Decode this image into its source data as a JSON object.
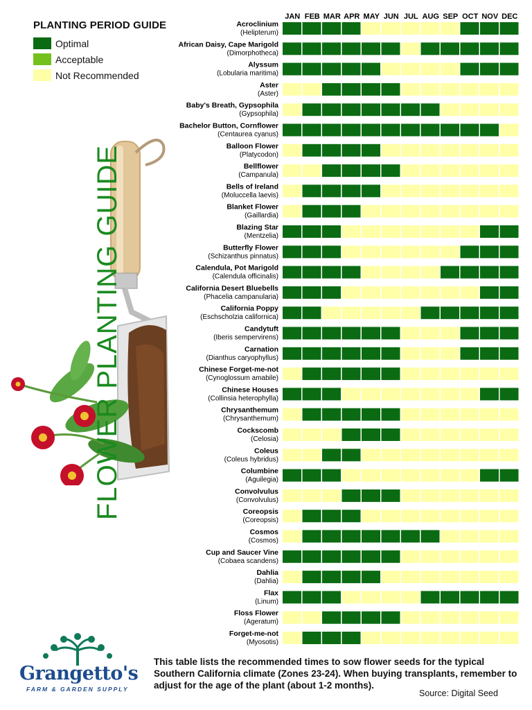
{
  "legend": {
    "title": "PLANTING PERIOD GUIDE",
    "items": [
      {
        "label": "Optimal",
        "color": "#0b6b12"
      },
      {
        "label": "Acceptable",
        "color": "#74c11d"
      },
      {
        "label": "Not Recommended",
        "color": "#ffffa8"
      }
    ]
  },
  "side_title": "FLOWER PLANTING GUIDE",
  "footer": {
    "note": "This table lists the recommended times to sow flower seeds for the typical Southern California climate (Zones 23-24). When buying transplants, remember to adjust for the age of the plant (about 1-2 months).",
    "source": "Source: Digital Seed"
  },
  "logo": {
    "brand": "Grangetto's",
    "tagline": "FARM & GARDEN SUPPLY"
  },
  "chart_data": {
    "type": "heatmap",
    "columns": [
      "JAN",
      "FEB",
      "MAR",
      "APR",
      "MAY",
      "JUN",
      "JUL",
      "AUG",
      "SEP",
      "OCT",
      "NOV",
      "DEC"
    ],
    "levels": {
      "0": "Not Recommended",
      "2": "Optimal"
    },
    "rows": [
      {
        "name": "Acroclinium",
        "sci": "(Helipterum)",
        "values": [
          2,
          2,
          2,
          2,
          0,
          0,
          0,
          0,
          0,
          2,
          2,
          2
        ]
      },
      {
        "name": "African Daisy, Cape Marigold",
        "sci": "(Dimorphotheca)",
        "values": [
          2,
          2,
          2,
          2,
          2,
          2,
          0,
          2,
          2,
          2,
          2,
          2
        ]
      },
      {
        "name": "Alyssum",
        "sci": "(Lobularia maritima)",
        "values": [
          2,
          2,
          2,
          2,
          2,
          0,
          0,
          0,
          0,
          2,
          2,
          2
        ]
      },
      {
        "name": "Aster",
        "sci": "(Aster)",
        "values": [
          0,
          0,
          2,
          2,
          2,
          2,
          0,
          0,
          0,
          0,
          0,
          0
        ]
      },
      {
        "name": "Baby's Breath, Gypsophila",
        "sci": "(Gypsophila)",
        "values": [
          0,
          2,
          2,
          2,
          2,
          2,
          2,
          2,
          0,
          0,
          0,
          0
        ]
      },
      {
        "name": "Bachelor Button, Cornflower",
        "sci": "(Centaurea cyanus)",
        "values": [
          2,
          2,
          2,
          2,
          2,
          2,
          2,
          2,
          2,
          2,
          2,
          0
        ]
      },
      {
        "name": "Balloon Flower",
        "sci": "(Platycodon)",
        "values": [
          0,
          2,
          2,
          2,
          2,
          0,
          0,
          0,
          0,
          0,
          0,
          0
        ]
      },
      {
        "name": "Bellflower",
        "sci": "(Campanula)",
        "values": [
          0,
          0,
          2,
          2,
          2,
          2,
          0,
          0,
          0,
          0,
          0,
          0
        ]
      },
      {
        "name": "Bells of Ireland",
        "sci": "(Moluccella laevis)",
        "values": [
          0,
          2,
          2,
          2,
          2,
          0,
          0,
          0,
          0,
          0,
          0,
          0
        ]
      },
      {
        "name": "Blanket Flower",
        "sci": "(Gaillardia)",
        "values": [
          0,
          2,
          2,
          2,
          0,
          0,
          0,
          0,
          0,
          0,
          0,
          0
        ]
      },
      {
        "name": "Blazing Star",
        "sci": "(Mentzelia)",
        "values": [
          2,
          2,
          2,
          0,
          0,
          0,
          0,
          0,
          0,
          0,
          2,
          2
        ]
      },
      {
        "name": "Butterfly Flower",
        "sci": "(Schizanthus pinnatus)",
        "values": [
          2,
          2,
          2,
          0,
          0,
          0,
          0,
          0,
          0,
          2,
          2,
          2
        ]
      },
      {
        "name": "Calendula, Pot Marigold",
        "sci": "(Calendula officinalis)",
        "values": [
          2,
          2,
          2,
          2,
          0,
          0,
          0,
          0,
          2,
          2,
          2,
          2
        ]
      },
      {
        "name": "California Desert Bluebells",
        "sci": "(Phacelia campanularia)",
        "values": [
          2,
          2,
          2,
          0,
          0,
          0,
          0,
          0,
          0,
          0,
          2,
          2
        ]
      },
      {
        "name": "California Poppy",
        "sci": "(Eschscholzia californica)",
        "values": [
          2,
          2,
          0,
          0,
          0,
          0,
          0,
          2,
          2,
          2,
          2,
          2
        ]
      },
      {
        "name": "Candytuft",
        "sci": "(Iberis sempervirens)",
        "values": [
          2,
          2,
          2,
          2,
          2,
          2,
          0,
          0,
          0,
          2,
          2,
          2
        ]
      },
      {
        "name": "Carnation",
        "sci": "(Dianthus caryophyllus)",
        "values": [
          2,
          2,
          2,
          2,
          2,
          2,
          0,
          0,
          0,
          2,
          2,
          2
        ]
      },
      {
        "name": "Chinese Forget-me-not",
        "sci": "(Cynoglossum amabile)",
        "values": [
          0,
          2,
          2,
          2,
          2,
          2,
          0,
          0,
          0,
          0,
          0,
          0
        ]
      },
      {
        "name": "Chinese Houses",
        "sci": "(Collinsia heterophylla)",
        "values": [
          2,
          2,
          2,
          0,
          0,
          0,
          0,
          0,
          0,
          0,
          2,
          2
        ]
      },
      {
        "name": "Chrysanthemum",
        "sci": "(Chrysanthemum)",
        "values": [
          0,
          2,
          2,
          2,
          2,
          2,
          0,
          0,
          0,
          0,
          0,
          0
        ]
      },
      {
        "name": "Cockscomb",
        "sci": "(Celosia)",
        "values": [
          0,
          0,
          0,
          2,
          2,
          2,
          0,
          0,
          0,
          0,
          0,
          0
        ]
      },
      {
        "name": "Coleus",
        "sci": "(Coleus hybridus)",
        "values": [
          0,
          0,
          2,
          2,
          0,
          0,
          0,
          0,
          0,
          0,
          0,
          0
        ]
      },
      {
        "name": "Columbine",
        "sci": "(Aguilegia)",
        "values": [
          2,
          2,
          2,
          0,
          0,
          0,
          0,
          0,
          0,
          0,
          2,
          2
        ]
      },
      {
        "name": "Convolvulus",
        "sci": "(Convolvulus)",
        "values": [
          0,
          0,
          0,
          2,
          2,
          2,
          0,
          0,
          0,
          0,
          0,
          0
        ]
      },
      {
        "name": "Coreopsis",
        "sci": "(Coreopsis)",
        "values": [
          0,
          2,
          2,
          2,
          0,
          0,
          0,
          0,
          0,
          0,
          0,
          0
        ]
      },
      {
        "name": "Cosmos",
        "sci": "(Cosmos)",
        "values": [
          0,
          2,
          2,
          2,
          2,
          2,
          2,
          2,
          0,
          0,
          0,
          0
        ]
      },
      {
        "name": "Cup and Saucer Vine",
        "sci": "(Cobaea scandens)",
        "values": [
          2,
          2,
          2,
          2,
          2,
          2,
          0,
          0,
          0,
          0,
          0,
          0
        ]
      },
      {
        "name": "Dahlia",
        "sci": "(Dahlia)",
        "values": [
          0,
          2,
          2,
          2,
          2,
          0,
          0,
          0,
          0,
          0,
          0,
          0
        ]
      },
      {
        "name": "Flax",
        "sci": "(Linum)",
        "values": [
          2,
          2,
          2,
          0,
          0,
          0,
          0,
          2,
          2,
          2,
          2,
          2
        ]
      },
      {
        "name": "Floss Flower",
        "sci": "(Ageratum)",
        "values": [
          0,
          0,
          2,
          2,
          2,
          2,
          0,
          0,
          0,
          0,
          0,
          0
        ]
      },
      {
        "name": "Forget-me-not",
        "sci": "(Myosotis)",
        "values": [
          0,
          2,
          2,
          2,
          0,
          0,
          0,
          0,
          0,
          0,
          0,
          0
        ]
      }
    ]
  }
}
